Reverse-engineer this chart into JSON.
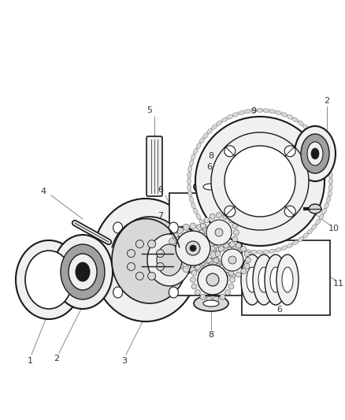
{
  "background_color": "#ffffff",
  "fig_width": 4.38,
  "fig_height": 5.33,
  "dpi": 100,
  "line_color": "#1a1a1a",
  "label_color": "#333333",
  "leader_color": "#888888",
  "fill_light": "#f0f0f0",
  "fill_mid": "#d8d8d8",
  "fill_dark": "#a0a0a0",
  "fill_black": "#1a1a1a"
}
